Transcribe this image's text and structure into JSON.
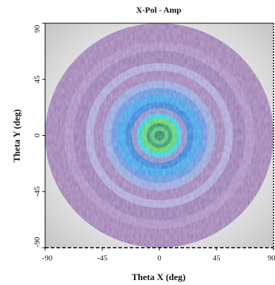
{
  "chart_data": {
    "type": "heatmap",
    "title": "X-Pol - Amp",
    "xlabel": "Theta X (deg)",
    "ylabel": "Theta Y (deg)",
    "xlim": [
      -90,
      90
    ],
    "ylim": [
      -90,
      90
    ],
    "x_ticks": [
      "-90",
      "-45",
      "0",
      "45",
      "90"
    ],
    "y_ticks": [
      "90",
      "45",
      "0",
      "-45",
      "-90"
    ],
    "grid": false,
    "colors": {
      "background_light": "#f4f4f4",
      "background_dark": "#c6c6c6",
      "outer_disk": "#9b7ab1",
      "ring_light": "#a9a8d9",
      "ring_blue": "#6fa0dc",
      "ring_teal": "#3a9fe6",
      "ring_cyan": "#38c4dc",
      "center_green": "#4fd16a",
      "center_dark": "#2a7f5e"
    },
    "rings": [
      {
        "radius_deg": 90,
        "color": "#9b7ab1"
      },
      {
        "radius_deg": 75,
        "color": "#a58abf"
      },
      {
        "radius_deg": 68,
        "color": "#9577b0"
      },
      {
        "radius_deg": 58,
        "color": "#a7a3d6"
      },
      {
        "radius_deg": 52,
        "color": "#9a7db5"
      },
      {
        "radius_deg": 44,
        "color": "#8fa3d8"
      },
      {
        "radius_deg": 38,
        "color": "#5f8fdc"
      },
      {
        "radius_deg": 33,
        "color": "#3a9fe6"
      },
      {
        "radius_deg": 27,
        "color": "#2f7fd8"
      },
      {
        "radius_deg": 22,
        "color": "#8b86c4"
      },
      {
        "radius_deg": 18,
        "color": "#39c5de"
      },
      {
        "radius_deg": 14,
        "color": "#4fd16a"
      },
      {
        "radius_deg": 10,
        "color": "#2f8f63"
      },
      {
        "radius_deg": 7,
        "color": "#46c46c"
      },
      {
        "radius_deg": 4,
        "color": "#2a7f5e"
      }
    ]
  }
}
